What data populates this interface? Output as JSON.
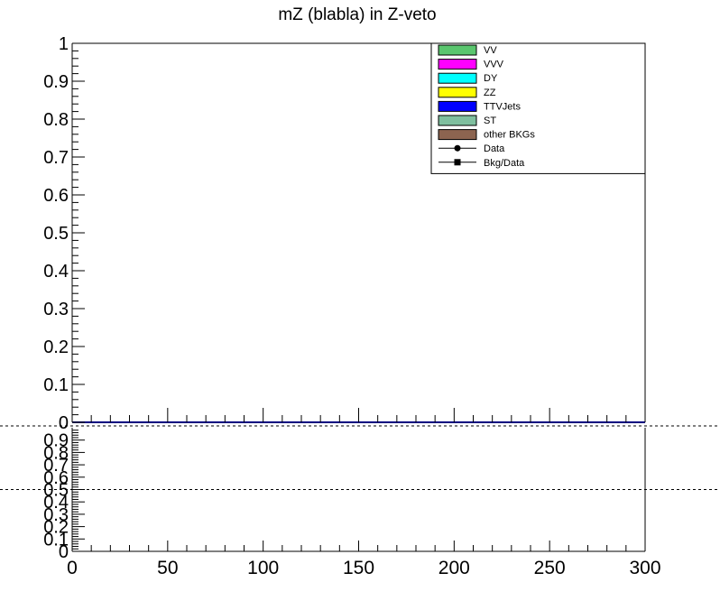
{
  "chart_data": [
    {
      "type": "bar",
      "title": "mZ (blabla) in Z-veto",
      "xlim": [
        0,
        300
      ],
      "ylim": [
        0,
        1
      ],
      "y_ticks": [
        "0",
        "0.1",
        "0.2",
        "0.3",
        "0.4",
        "0.5",
        "0.6",
        "0.7",
        "0.8",
        "0.9",
        "1"
      ],
      "legend": {
        "placement": "top-right",
        "entries": [
          {
            "label": "VV",
            "color": "#5ac66e",
            "style": "box"
          },
          {
            "label": "VVV",
            "color": "#ff00ff",
            "style": "box"
          },
          {
            "label": "DY",
            "color": "#00ffff",
            "style": "box"
          },
          {
            "label": "ZZ",
            "color": "#ffff00",
            "style": "box"
          },
          {
            "label": "TTVJets",
            "color": "#0000ff",
            "style": "box"
          },
          {
            "label": "ST",
            "color": "#7fbf9f",
            "style": "box"
          },
          {
            "label": "other BKGs",
            "color": "#8c6450",
            "style": "box"
          },
          {
            "label": "Data",
            "color": "#000000",
            "style": "marker-circle"
          },
          {
            "label": "Bkg/Data",
            "color": "#000000",
            "style": "marker-square"
          }
        ]
      },
      "series": [],
      "line_color": "#000080"
    },
    {
      "type": "line",
      "title": "",
      "xlim": [
        0,
        300
      ],
      "ylim": [
        0,
        1
      ],
      "x_ticks": [
        "0",
        "50",
        "100",
        "150",
        "200",
        "250",
        "300"
      ],
      "y_ticks": [
        "0",
        "0.1",
        "0.2",
        "0.3",
        "0.4",
        "0.5",
        "0.6",
        "0.7",
        "0.8",
        "0.9"
      ],
      "reference_lines": [
        0.5
      ],
      "series": []
    }
  ]
}
